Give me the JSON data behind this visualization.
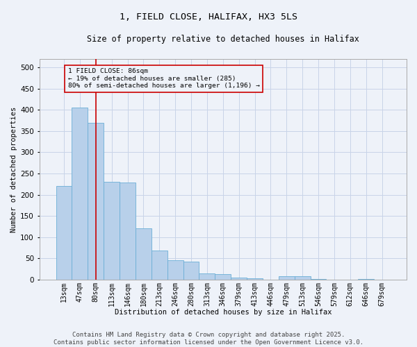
{
  "title1": "1, FIELD CLOSE, HALIFAX, HX3 5LS",
  "title2": "Size of property relative to detached houses in Halifax",
  "xlabel": "Distribution of detached houses by size in Halifax",
  "ylabel": "Number of detached properties",
  "categories": [
    "13sqm",
    "47sqm",
    "80sqm",
    "113sqm",
    "146sqm",
    "180sqm",
    "213sqm",
    "246sqm",
    "280sqm",
    "313sqm",
    "346sqm",
    "379sqm",
    "413sqm",
    "446sqm",
    "479sqm",
    "513sqm",
    "546sqm",
    "579sqm",
    "612sqm",
    "646sqm",
    "679sqm"
  ],
  "values": [
    220,
    405,
    370,
    230,
    228,
    120,
    68,
    45,
    42,
    15,
    12,
    5,
    3,
    0,
    8,
    8,
    2,
    0,
    0,
    2,
    0
  ],
  "bar_color": "#b8d0ea",
  "bar_edge_color": "#6baed6",
  "grid_color": "#c8d4e8",
  "annotation_text_line1": "1 FIELD CLOSE: 86sqm",
  "annotation_text_line2": "← 19% of detached houses are smaller (285)",
  "annotation_text_line3": "80% of semi-detached houses are larger (1,196) →",
  "vline_color": "#cc0000",
  "annotation_box_color": "#cc0000",
  "footer_text": "Contains HM Land Registry data © Crown copyright and database right 2025.\nContains public sector information licensed under the Open Government Licence v3.0.",
  "ylim": [
    0,
    520
  ],
  "yticks": [
    0,
    50,
    100,
    150,
    200,
    250,
    300,
    350,
    400,
    450,
    500
  ],
  "title_fontsize": 9.5,
  "subtitle_fontsize": 8.5,
  "axis_label_fontsize": 7.5,
  "tick_fontsize": 7,
  "footer_fontsize": 6.5,
  "background_color": "#eef2f9"
}
